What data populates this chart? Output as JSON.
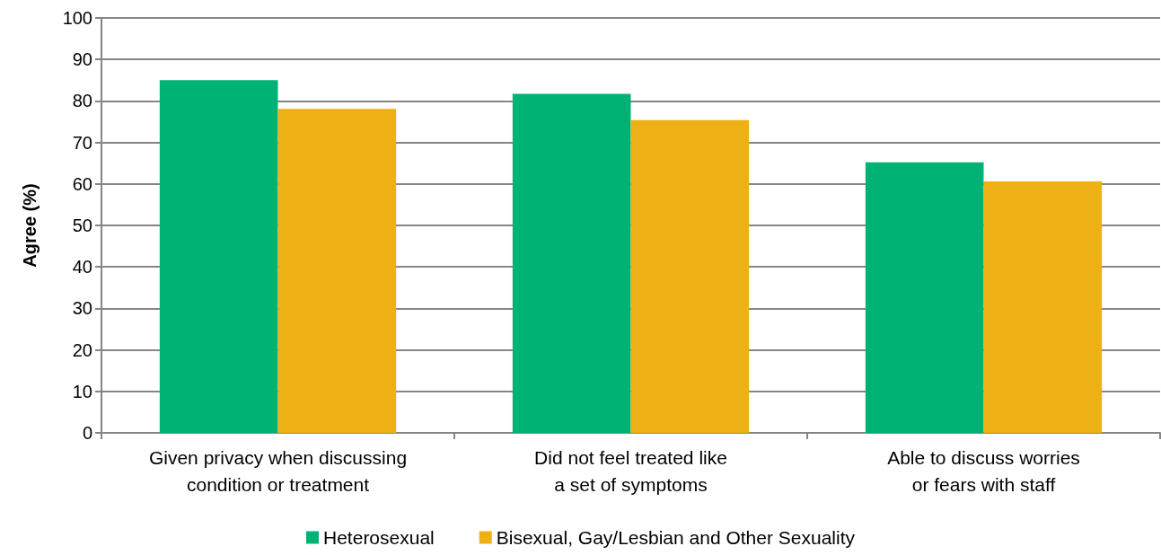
{
  "chart_data": {
    "type": "bar",
    "ylabel": "Agree (%)",
    "categories": [
      "Given privacy when discussing\ncondition or treatment",
      "Did not feel treated like\na set of symptoms",
      "Able to discuss worries\nor fears with staff"
    ],
    "series": [
      {
        "name": "Heterosexual",
        "color": "#00b274",
        "values": [
          85.0,
          81.7,
          65.2
        ]
      },
      {
        "name": "Bisexual, Gay/Lesbian and Other Sexuality",
        "color": "#edb115",
        "values": [
          78.1,
          75.4,
          60.6
        ]
      }
    ],
    "ylim": [
      0,
      100
    ],
    "yticks": [
      0,
      10,
      20,
      30,
      40,
      50,
      60,
      70,
      80,
      90,
      100
    ],
    "grid": "y",
    "legend": "bottom"
  }
}
